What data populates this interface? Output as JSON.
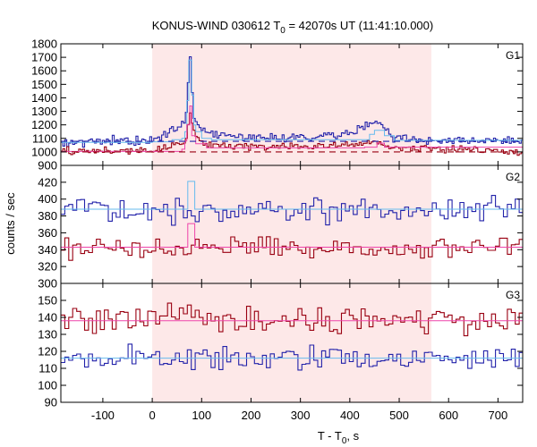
{
  "title": {
    "prefix": "KONUS-WIND 030612 T",
    "sub": "0",
    "suffix": " = 42070s UT (11:41:10.000)"
  },
  "xlabel": {
    "prefix": "T - T",
    "sub": "0",
    "suffix": ", s"
  },
  "ylabel": "counts / sec",
  "colors": {
    "shade": "#fde8e8",
    "blue": "#2222aa",
    "light_blue": "#66bbee",
    "dark_red": "#990011",
    "pink": "#ee44aa",
    "axis": "#000000"
  },
  "chart_data": [
    {
      "type": "line",
      "panel": "G1",
      "xlim": [
        -185,
        750
      ],
      "ylim": [
        900,
        1800
      ],
      "xticks": [
        -100,
        0,
        100,
        200,
        300,
        400,
        500,
        600,
        700
      ],
      "xtick_labels_shown": false,
      "yticks": [
        900,
        1000,
        1100,
        1200,
        1300,
        1400,
        1500,
        1600,
        1700,
        1800
      ],
      "shaded_interval": [
        0,
        565
      ],
      "bin_width": 4,
      "series": [
        {
          "role": "upper-histogram",
          "color": "#2222aa",
          "step": true,
          "start": -185,
          "end": 750,
          "profile": [
            {
              "x": -185,
              "y": 1075
            },
            {
              "x": 0,
              "y": 1080
            },
            {
              "x": 20,
              "y": 1130
            },
            {
              "x": 50,
              "y": 1180
            },
            {
              "x": 68,
              "y": 1230
            },
            {
              "x": 72,
              "y": 1460
            },
            {
              "x": 76,
              "y": 1690
            },
            {
              "x": 80,
              "y": 1560
            },
            {
              "x": 84,
              "y": 1240
            },
            {
              "x": 92,
              "y": 1210
            },
            {
              "x": 100,
              "y": 1150
            },
            {
              "x": 140,
              "y": 1120
            },
            {
              "x": 250,
              "y": 1110
            },
            {
              "x": 330,
              "y": 1115
            },
            {
              "x": 400,
              "y": 1140
            },
            {
              "x": 440,
              "y": 1200
            },
            {
              "x": 455,
              "y": 1250
            },
            {
              "x": 468,
              "y": 1180
            },
            {
              "x": 490,
              "y": 1100
            },
            {
              "x": 560,
              "y": 1085
            },
            {
              "x": 750,
              "y": 1080
            }
          ],
          "noise": 25
        },
        {
          "role": "lower-histogram",
          "color": "#990011",
          "step": true,
          "start": -185,
          "end": 750,
          "profile": [
            {
              "x": -185,
              "y": 1005
            },
            {
              "x": 0,
              "y": 1010
            },
            {
              "x": 40,
              "y": 1045
            },
            {
              "x": 68,
              "y": 1080
            },
            {
              "x": 74,
              "y": 1200
            },
            {
              "x": 78,
              "y": 1330
            },
            {
              "x": 82,
              "y": 1180
            },
            {
              "x": 92,
              "y": 1100
            },
            {
              "x": 110,
              "y": 1050
            },
            {
              "x": 200,
              "y": 1040
            },
            {
              "x": 400,
              "y": 1045
            },
            {
              "x": 455,
              "y": 1075
            },
            {
              "x": 490,
              "y": 1030
            },
            {
              "x": 750,
              "y": 1005
            }
          ],
          "noise": 20
        },
        {
          "role": "upper-model",
          "color": "#66bbee",
          "step": true,
          "points": [
            {
              "x": -185,
              "y": 1070
            },
            {
              "x": 0,
              "y": 1075
            },
            {
              "x": 40,
              "y": 1090
            },
            {
              "x": 60,
              "y": 1100
            },
            {
              "x": 66,
              "y": 1150
            },
            {
              "x": 70,
              "y": 1380
            },
            {
              "x": 74,
              "y": 1680
            },
            {
              "x": 80,
              "y": 1420
            },
            {
              "x": 84,
              "y": 1200
            },
            {
              "x": 88,
              "y": 1150
            },
            {
              "x": 100,
              "y": 1100
            },
            {
              "x": 120,
              "y": 1090
            },
            {
              "x": 420,
              "y": 1090
            },
            {
              "x": 440,
              "y": 1130
            },
            {
              "x": 450,
              "y": 1160
            },
            {
              "x": 470,
              "y": 1120
            },
            {
              "x": 490,
              "y": 1085
            },
            {
              "x": 750,
              "y": 1078
            }
          ]
        },
        {
          "role": "lower-model",
          "color": "#ee44aa",
          "step": true,
          "points": [
            {
              "x": -185,
              "y": 1003
            },
            {
              "x": 60,
              "y": 1020
            },
            {
              "x": 66,
              "y": 1080
            },
            {
              "x": 70,
              "y": 1200
            },
            {
              "x": 76,
              "y": 1340
            },
            {
              "x": 80,
              "y": 1120
            },
            {
              "x": 88,
              "y": 1060
            },
            {
              "x": 110,
              "y": 1030
            },
            {
              "x": 430,
              "y": 1035
            },
            {
              "x": 455,
              "y": 1065
            },
            {
              "x": 470,
              "y": 1035
            },
            {
              "x": 750,
              "y": 1003
            }
          ]
        },
        {
          "role": "background-dashed",
          "color": "#990011",
          "dashed": true,
          "points": [
            {
              "x": -185,
              "y": 1000
            },
            {
              "x": 750,
              "y": 1000
            }
          ]
        },
        {
          "role": "background-dashed",
          "color": "#2222aa",
          "dashed": true,
          "points": [
            {
              "x": -185,
              "y": 1078
            },
            {
              "x": 750,
              "y": 1078
            }
          ]
        }
      ]
    },
    {
      "type": "line",
      "panel": "G2",
      "xlim": [
        -185,
        750
      ],
      "ylim": [
        300,
        440
      ],
      "xticks": [
        -100,
        0,
        100,
        200,
        300,
        400,
        500,
        600,
        700
      ],
      "xtick_labels_shown": false,
      "yticks": [
        300,
        320,
        340,
        360,
        380,
        400,
        420
      ],
      "shaded_interval": [
        0,
        565
      ],
      "bin_width": 8,
      "series": [
        {
          "role": "upper-histogram",
          "color": "#2222aa",
          "step": true,
          "start": -185,
          "end": 750,
          "profile": [
            {
              "x": -185,
              "y": 388
            },
            {
              "x": 750,
              "y": 388
            }
          ],
          "noise": 12
        },
        {
          "role": "lower-histogram",
          "color": "#990011",
          "step": true,
          "start": -185,
          "end": 750,
          "profile": [
            {
              "x": -185,
              "y": 342
            },
            {
              "x": 750,
              "y": 343
            }
          ],
          "noise": 10
        },
        {
          "role": "upper-model",
          "color": "#66bbee",
          "step": true,
          "points": [
            {
              "x": -185,
              "y": 388
            },
            {
              "x": 70,
              "y": 388
            },
            {
              "x": 72,
              "y": 421
            },
            {
              "x": 84,
              "y": 421
            },
            {
              "x": 86,
              "y": 388
            },
            {
              "x": 750,
              "y": 388
            }
          ]
        },
        {
          "role": "lower-model",
          "color": "#ee44aa",
          "step": true,
          "points": [
            {
              "x": -185,
              "y": 343
            },
            {
              "x": 70,
              "y": 343
            },
            {
              "x": 72,
              "y": 371
            },
            {
              "x": 84,
              "y": 371
            },
            {
              "x": 86,
              "y": 343
            },
            {
              "x": 750,
              "y": 343
            }
          ]
        }
      ]
    },
    {
      "type": "line",
      "panel": "G3",
      "xlim": [
        -185,
        750
      ],
      "ylim": [
        90,
        160
      ],
      "xticks": [
        -100,
        0,
        100,
        200,
        300,
        400,
        500,
        600,
        700
      ],
      "xtick_labels_shown": true,
      "yticks": [
        90,
        100,
        110,
        120,
        130,
        140,
        150
      ],
      "shaded_interval": [
        0,
        565
      ],
      "bin_width": 8,
      "series": [
        {
          "role": "upper-histogram",
          "color": "#990011",
          "step": true,
          "start": -185,
          "end": 750,
          "profile": [
            {
              "x": -185,
              "y": 138
            },
            {
              "x": 750,
              "y": 138
            }
          ],
          "noise": 6
        },
        {
          "role": "lower-histogram",
          "color": "#2222aa",
          "step": true,
          "start": -185,
          "end": 750,
          "profile": [
            {
              "x": -185,
              "y": 116
            },
            {
              "x": 750,
              "y": 116
            }
          ],
          "noise": 5
        },
        {
          "role": "upper-model",
          "color": "#ee44aa",
          "step": false,
          "points": [
            {
              "x": -185,
              "y": 138
            },
            {
              "x": 750,
              "y": 138
            }
          ]
        },
        {
          "role": "lower-model",
          "color": "#66bbee",
          "step": false,
          "points": [
            {
              "x": -185,
              "y": 116
            },
            {
              "x": 750,
              "y": 116
            }
          ]
        }
      ]
    }
  ]
}
